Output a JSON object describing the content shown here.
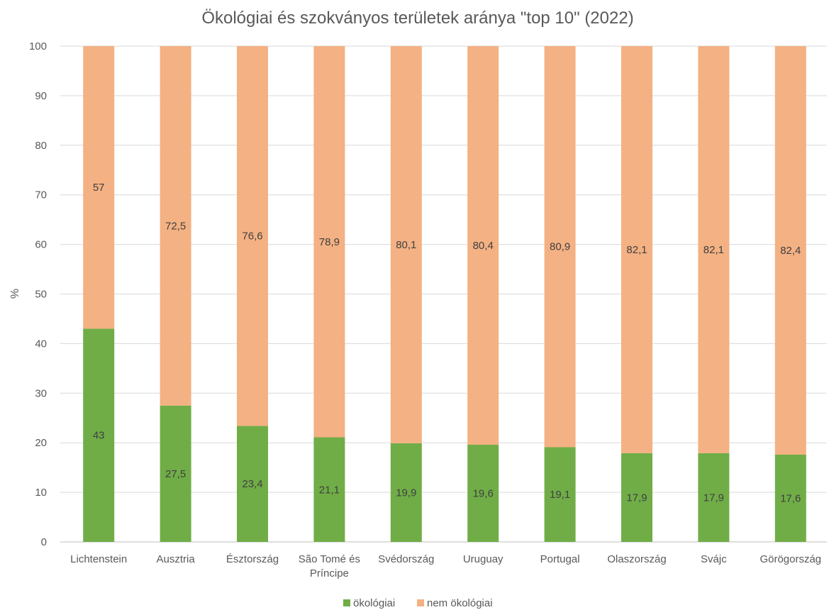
{
  "chart_data": {
    "type": "bar",
    "stacked": true,
    "title": "Ökológiai és szokványos területek aránya \"top 10\" (2022)",
    "xlabel": "",
    "ylabel": "%",
    "ylim": [
      0,
      100
    ],
    "yticks": [
      "0",
      "10",
      "20",
      "30",
      "40",
      "50",
      "60",
      "70",
      "80",
      "90",
      "100"
    ],
    "grid": true,
    "legend_position": "bottom",
    "categories": [
      "Lichtenstein",
      "Ausztria",
      "Észtország",
      "São Tomé és Príncipe",
      "Svédország",
      "Uruguay",
      "Portugal",
      "Olaszország",
      "Svájc",
      "Görögország"
    ],
    "series": [
      {
        "name": "ökológiai",
        "color": "#70ad47",
        "values": [
          43,
          27.5,
          23.4,
          21.1,
          19.9,
          19.6,
          19.1,
          17.9,
          17.9,
          17.6
        ],
        "labels": [
          "43",
          "27,5",
          "23,4",
          "21,1",
          "19,9",
          "19,6",
          "19,1",
          "17,9",
          "17,9",
          "17,6"
        ]
      },
      {
        "name": "nem ökológiai",
        "color": "#f4b183",
        "values": [
          57,
          72.5,
          76.6,
          78.9,
          80.1,
          80.4,
          80.9,
          82.1,
          82.1,
          82.4
        ],
        "labels": [
          "57",
          "72,5",
          "76,6",
          "78,9",
          "80,1",
          "80,4",
          "80,9",
          "82,1",
          "82,1",
          "82,4"
        ]
      }
    ]
  }
}
